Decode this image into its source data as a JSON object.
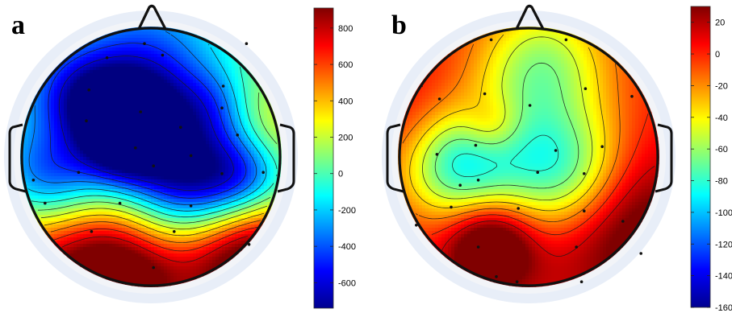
{
  "chart_data": [
    {
      "type": "heatmap",
      "panel_label": "a",
      "colorbar": {
        "ticks": [
          800,
          600,
          400,
          200,
          0,
          -200,
          -400,
          -600
        ],
        "range": [
          -740,
          910
        ],
        "colormap": "jet"
      },
      "electrodes": [
        {
          "x": -0.34,
          "y": -0.77
        },
        {
          "x": 0.09,
          "y": -0.79
        },
        {
          "x": 0.56,
          "y": -0.55
        },
        {
          "x": -0.48,
          "y": -0.52
        },
        {
          "x": -0.08,
          "y": -0.35
        },
        {
          "x": 0.55,
          "y": -0.38
        },
        {
          "x": -0.5,
          "y": -0.28
        },
        {
          "x": 0.23,
          "y": -0.23
        },
        {
          "x": 0.67,
          "y": -0.17
        },
        {
          "x": -0.12,
          "y": -0.07
        },
        {
          "x": 0.31,
          "y": -0.01
        },
        {
          "x": -0.91,
          "y": 0.18
        },
        {
          "x": -0.56,
          "y": 0.12
        },
        {
          "x": 0.02,
          "y": 0.07
        },
        {
          "x": 0.55,
          "y": 0.13
        },
        {
          "x": 0.87,
          "y": 0.12
        },
        {
          "x": -0.82,
          "y": 0.36
        },
        {
          "x": -0.24,
          "y": 0.36
        },
        {
          "x": 0.31,
          "y": 0.38
        },
        {
          "x": -0.46,
          "y": 0.58
        },
        {
          "x": 0.02,
          "y": 0.86
        },
        {
          "x": 0.18,
          "y": 0.58
        },
        {
          "x": 0.76,
          "y": 0.68
        },
        {
          "x": 0.74,
          "y": -0.88
        },
        {
          "x": -0.05,
          "y": -0.88
        }
      ],
      "sources": [
        {
          "x": -0.15,
          "y": -0.35,
          "s": 0.25,
          "v": -420
        },
        {
          "x": -0.45,
          "y": -0.45,
          "s": 0.22,
          "v": -280
        },
        {
          "x": 0.5,
          "y": -0.4,
          "s": 0.22,
          "v": -300
        },
        {
          "x": 0.08,
          "y": -0.2,
          "s": 0.3,
          "v": -250
        },
        {
          "x": -0.25,
          "y": -0.08,
          "s": 0.25,
          "v": -620
        },
        {
          "x": -0.8,
          "y": 0.2,
          "s": 0.28,
          "v": -560
        },
        {
          "x": 0.3,
          "y": 0.18,
          "s": 0.3,
          "v": -620
        },
        {
          "x": 0.75,
          "y": 0.15,
          "s": 0.25,
          "v": -520
        },
        {
          "x": -0.05,
          "y": -0.7,
          "s": 0.4,
          "v": -420
        },
        {
          "x": -0.7,
          "y": -0.5,
          "s": 0.3,
          "v": -280
        },
        {
          "x": 0.8,
          "y": -0.4,
          "s": 0.3,
          "v": 200
        },
        {
          "x": 1.0,
          "y": -0.1,
          "s": 0.25,
          "v": 200
        },
        {
          "x": -0.7,
          "y": 0.9,
          "s": 0.5,
          "v": 650
        },
        {
          "x": -0.2,
          "y": 0.95,
          "s": 0.35,
          "v": 700
        },
        {
          "x": 0.9,
          "y": 0.75,
          "s": 0.35,
          "v": 820
        },
        {
          "x": 0.5,
          "y": 0.95,
          "s": 0.35,
          "v": 450
        },
        {
          "x": -0.9,
          "y": 0.6,
          "s": 0.3,
          "v": 100
        },
        {
          "x": 0.0,
          "y": 0.55,
          "s": 0.25,
          "v": -60
        }
      ]
    },
    {
      "type": "heatmap",
      "panel_label": "b",
      "colorbar": {
        "ticks": [
          20,
          0,
          -20,
          -40,
          -60,
          -80,
          -100,
          -120,
          -140,
          -160
        ],
        "range": [
          -160,
          30
        ],
        "colormap": "jet"
      },
      "electrodes": [
        {
          "x": -0.29,
          "y": -0.91
        },
        {
          "x": 0.29,
          "y": -0.91
        },
        {
          "x": -0.34,
          "y": -0.49
        },
        {
          "x": 0.01,
          "y": -0.4
        },
        {
          "x": 0.44,
          "y": -0.53
        },
        {
          "x": 0.8,
          "y": -0.47
        },
        {
          "x": -0.69,
          "y": -0.45
        },
        {
          "x": -0.41,
          "y": -0.09
        },
        {
          "x": 0.21,
          "y": -0.05
        },
        {
          "x": 0.57,
          "y": -0.08
        },
        {
          "x": -0.71,
          "y": -0.02
        },
        {
          "x": -0.39,
          "y": 0.18
        },
        {
          "x": -0.53,
          "y": 0.22
        },
        {
          "x": 0.07,
          "y": 0.12
        },
        {
          "x": 0.43,
          "y": 0.13
        },
        {
          "x": -0.6,
          "y": 0.39
        },
        {
          "x": -0.08,
          "y": 0.4
        },
        {
          "x": 0.43,
          "y": 0.42
        },
        {
          "x": -0.87,
          "y": 0.53
        },
        {
          "x": 0.73,
          "y": 0.5
        },
        {
          "x": -0.39,
          "y": 0.7
        },
        {
          "x": 0.37,
          "y": 0.7
        },
        {
          "x": -0.09,
          "y": 0.97
        },
        {
          "x": 0.41,
          "y": 0.97
        },
        {
          "x": 0.87,
          "y": 0.75
        },
        {
          "x": -0.25,
          "y": 0.93
        }
      ],
      "sources": [
        {
          "x": -0.29,
          "y": -0.23,
          "s": 0.17,
          "v": 30
        },
        {
          "x": -0.35,
          "y": -0.08,
          "s": 0.3,
          "v": -35
        },
        {
          "x": -0.3,
          "y": 0.7,
          "s": 0.22,
          "v": 60
        },
        {
          "x": 0.8,
          "y": 0.55,
          "s": 0.45,
          "v": 45
        },
        {
          "x": -0.9,
          "y": -0.3,
          "s": 0.35,
          "v": 10
        },
        {
          "x": 0.9,
          "y": 0.1,
          "s": 0.3,
          "v": 0
        },
        {
          "x": -0.6,
          "y": 0.1,
          "s": 0.3,
          "v": -60
        },
        {
          "x": 0.25,
          "y": 0.1,
          "s": 0.35,
          "v": -80
        },
        {
          "x": 0.1,
          "y": -0.7,
          "s": 0.35,
          "v": -60
        },
        {
          "x": -0.1,
          "y": 0.9,
          "s": 0.35,
          "v": 10
        },
        {
          "x": -0.75,
          "y": 0.75,
          "s": 0.3,
          "v": 5
        }
      ]
    }
  ]
}
